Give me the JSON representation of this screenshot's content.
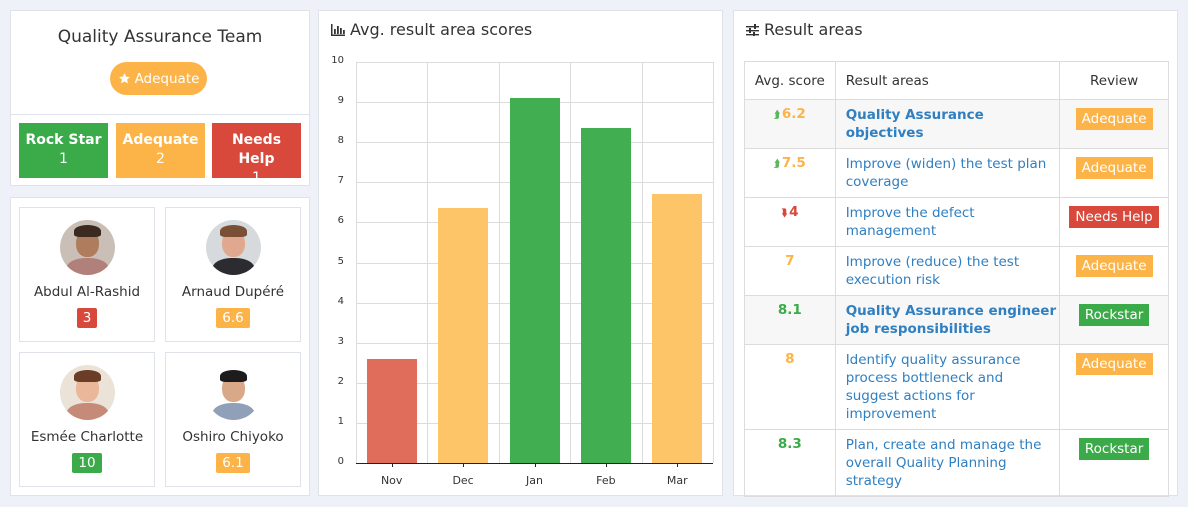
{
  "team": {
    "title": "Quality Assurance Team",
    "badge_label": "Adequate",
    "badge_icon": "star-icon",
    "stats": [
      {
        "label": "Rock Star",
        "count": "1",
        "color": "#3bab4a"
      },
      {
        "label": "Adequate",
        "count": "2",
        "color": "#fcb347"
      },
      {
        "label": "Needs Help",
        "count": "1",
        "color": "#d9493b"
      }
    ]
  },
  "people": [
    {
      "name": "Abdul Al-Rashid",
      "score": "3",
      "score_color": "#d9493b"
    },
    {
      "name": "Arnaud Dupéré",
      "score": "6.6",
      "score_color": "#fcb347"
    },
    {
      "name": "Esmée Charlotte",
      "score": "10",
      "score_color": "#3bab4a"
    },
    {
      "name": "Oshiro Chiyoko",
      "score": "6.1",
      "score_color": "#fcb347"
    }
  ],
  "chart": {
    "title": "Avg. result area scores",
    "icon": "bar-chart-icon"
  },
  "chart_data": {
    "type": "bar",
    "title": "Avg. result area scores",
    "categories": [
      "Nov",
      "Dec",
      "Jan",
      "Feb",
      "Mar"
    ],
    "values": [
      2.6,
      6.35,
      9.1,
      8.35,
      6.7
    ],
    "colors": [
      "#e06c5c",
      "#fdc468",
      "#41ae51",
      "#41ae51",
      "#fdc468"
    ],
    "xlabel": "",
    "ylabel": "",
    "ylim": [
      0,
      10
    ],
    "yticks": [
      "0",
      "1",
      "2",
      "3",
      "4",
      "5",
      "6",
      "7",
      "8",
      "9",
      "10"
    ],
    "grid": true,
    "legend": "none"
  },
  "results": {
    "title": "Result areas",
    "icon": "sliders-icon",
    "headers": {
      "score": "Avg. score",
      "area": "Result areas",
      "review": "Review"
    },
    "rows": [
      {
        "trend": "up",
        "score": "6.2",
        "score_color": "#fcb347",
        "area": "Quality Assurance objectives",
        "bold": true,
        "review": "Adequate",
        "review_color": "#fcb347"
      },
      {
        "trend": "up",
        "score": "7.5",
        "score_color": "#fcb347",
        "area": "Improve (widen) the test plan coverage",
        "bold": false,
        "review": "Adequate",
        "review_color": "#fcb347"
      },
      {
        "trend": "down",
        "score": "4",
        "score_color": "#d9493b",
        "area": "Improve the defect management",
        "bold": false,
        "review": "Needs Help",
        "review_color": "#d9493b"
      },
      {
        "trend": "",
        "score": "7",
        "score_color": "#fcb347",
        "area": "Improve (reduce) the test execution risk",
        "bold": false,
        "review": "Adequate",
        "review_color": "#fcb347"
      },
      {
        "trend": "",
        "score": "8.1",
        "score_color": "#3bab4a",
        "area": "Quality Assurance engineer job responsibilities",
        "bold": true,
        "review": "Rockstar",
        "review_color": "#3bab4a"
      },
      {
        "trend": "",
        "score": "8",
        "score_color": "#fcb347",
        "area": "Identify quality assurance process bottleneck and suggest actions for improvement",
        "bold": false,
        "review": "Adequate",
        "review_color": "#fcb347"
      },
      {
        "trend": "",
        "score": "8.3",
        "score_color": "#3bab4a",
        "area": "Plan, create and manage the overall Quality Planning strategy",
        "bold": false,
        "review": "Rockstar",
        "review_color": "#3bab4a"
      }
    ]
  }
}
